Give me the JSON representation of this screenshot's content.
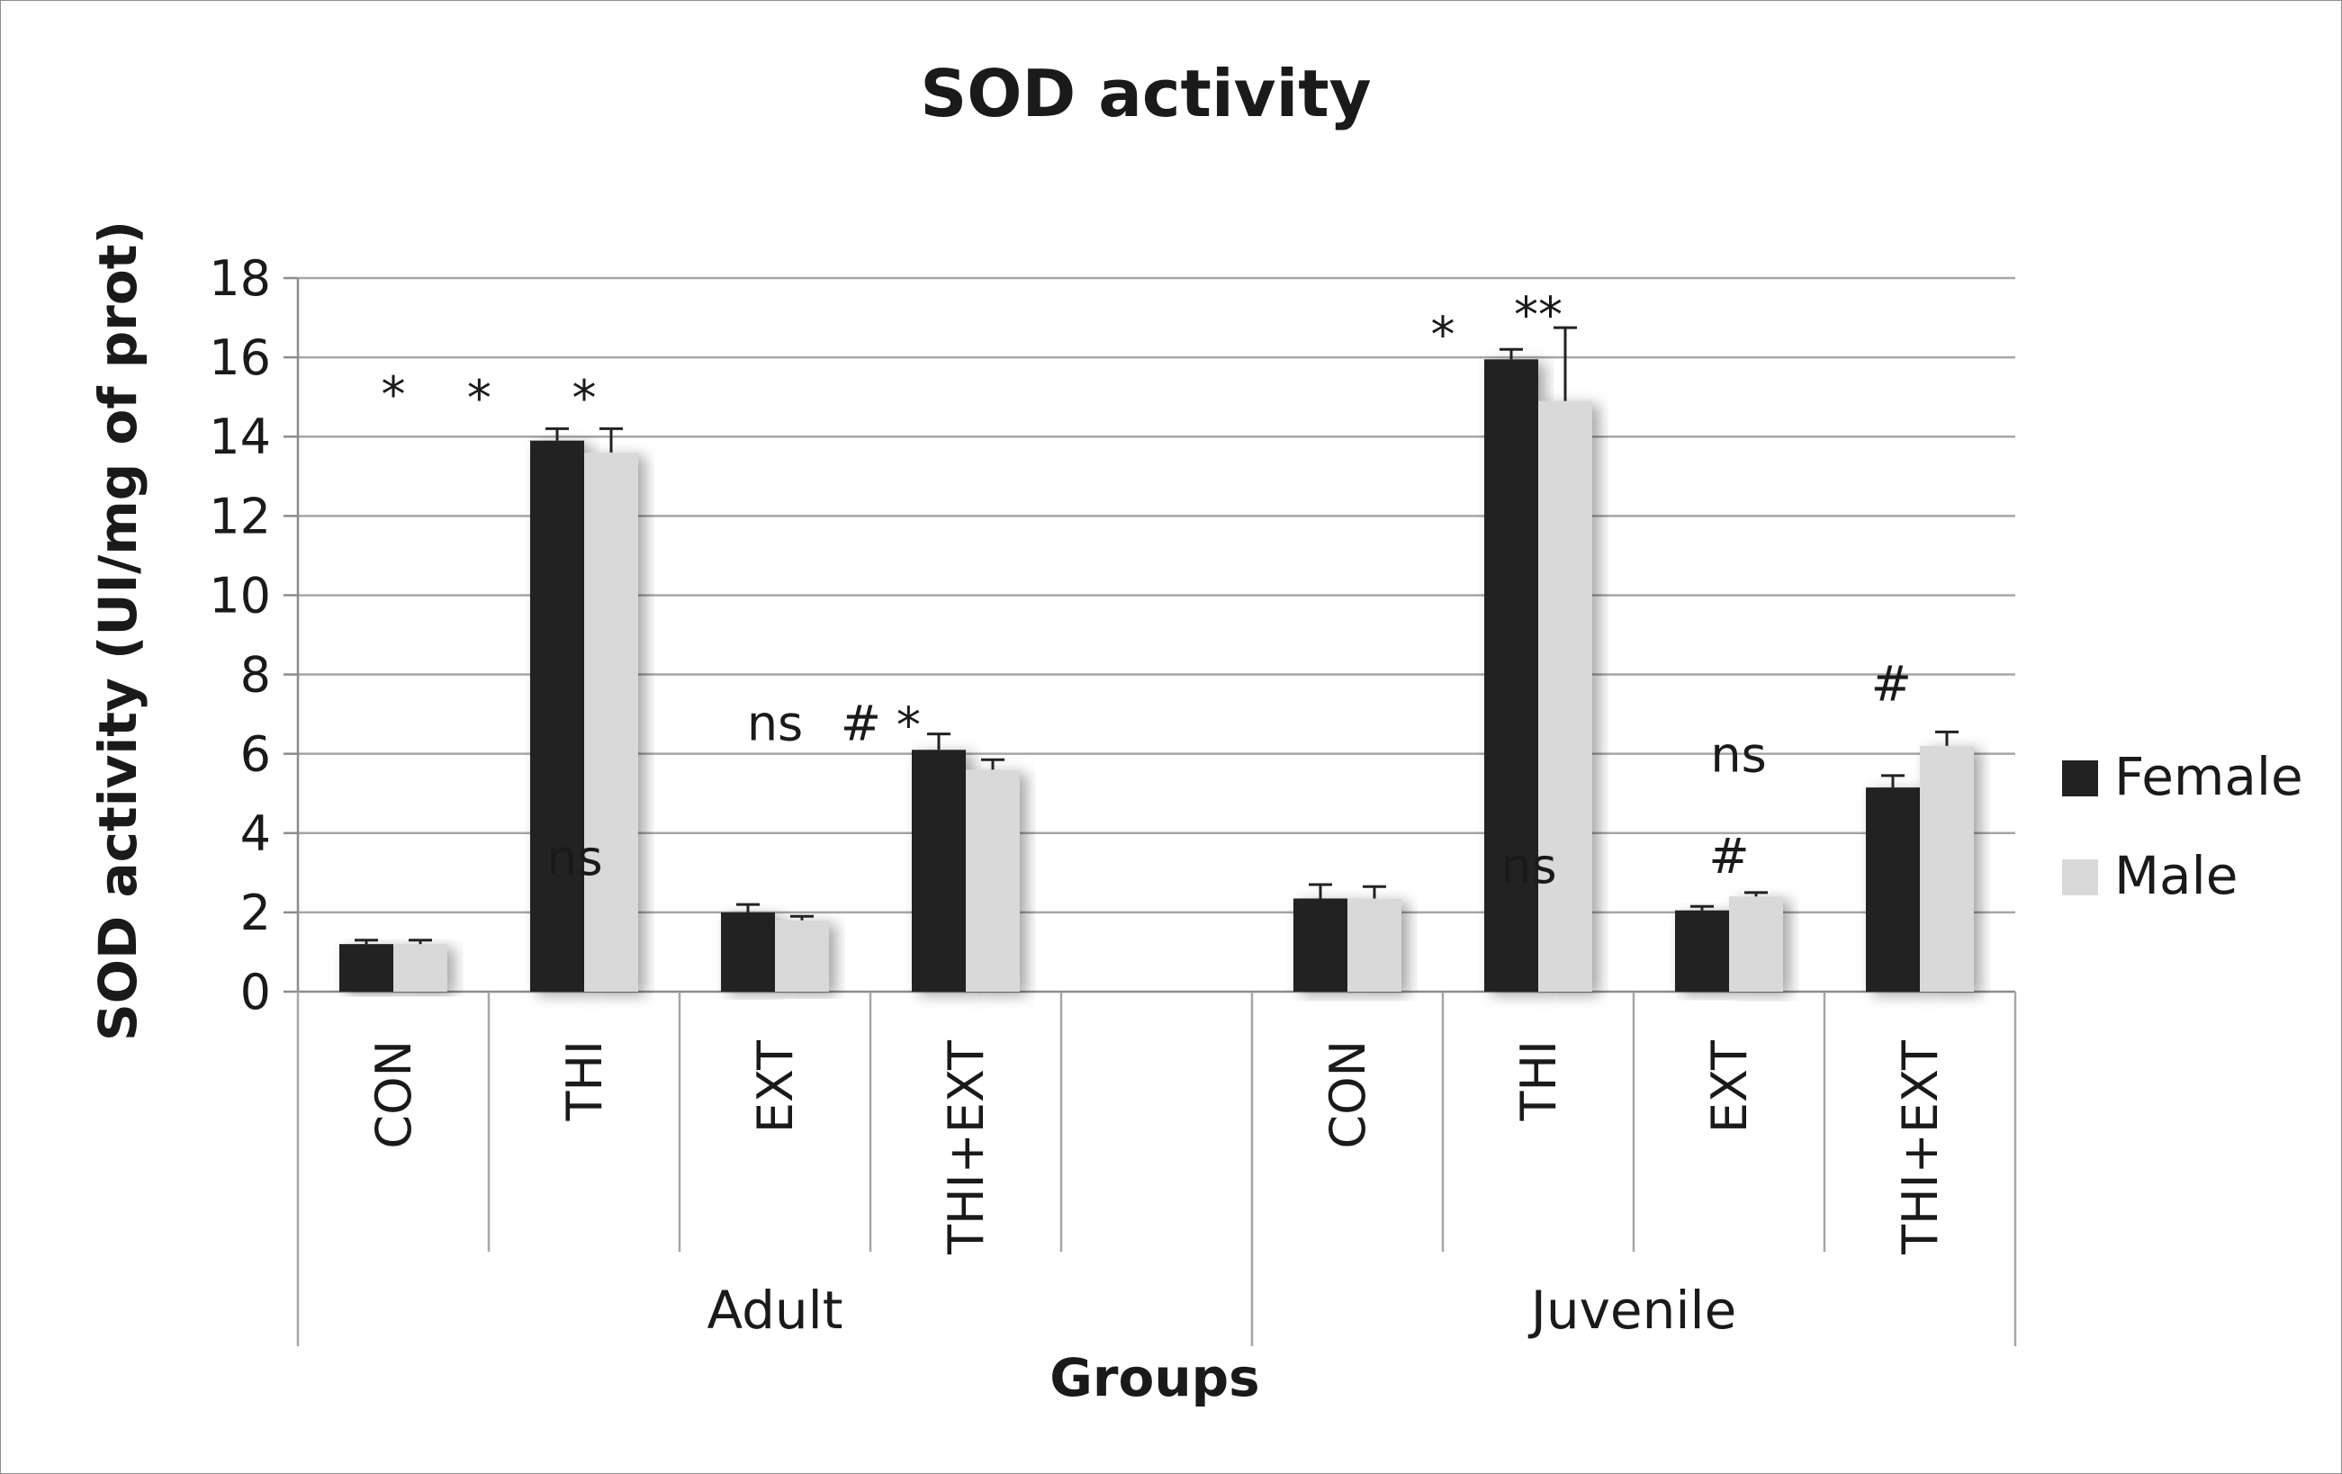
{
  "chart_data": {
    "type": "bar",
    "title": "SOD activity",
    "xlabel": "Groups",
    "ylabel": "SOD activity (UI/mg of prot)",
    "ylim": [
      0,
      18
    ],
    "yticks": [
      0,
      2,
      4,
      6,
      8,
      10,
      12,
      14,
      16,
      18
    ],
    "grid": true,
    "legend_position": "right",
    "groups": [
      {
        "name": "Adult",
        "categories": [
          "CON",
          "THI",
          "EXT",
          "THI+EXT",
          ""
        ]
      },
      {
        "name": "Juvenile",
        "categories": [
          "CON",
          "THI",
          "EXT",
          "THI+EXT"
        ]
      }
    ],
    "categories": [
      "CON",
      "THI",
      "EXT",
      "THI+EXT",
      "",
      "CON",
      "THI",
      "EXT",
      "THI+EXT"
    ],
    "series": [
      {
        "name": "Female",
        "color": "#222222",
        "values": [
          1.2,
          13.9,
          2.0,
          6.1,
          null,
          2.35,
          15.95,
          2.05,
          5.15
        ],
        "errors": [
          0.1,
          0.3,
          0.2,
          0.4,
          null,
          0.35,
          0.25,
          0.1,
          0.3
        ]
      },
      {
        "name": "Male",
        "color": "#d9d9d9",
        "values": [
          1.2,
          13.6,
          1.8,
          5.6,
          null,
          2.35,
          14.9,
          2.4,
          6.2
        ],
        "errors": [
          0.1,
          0.6,
          0.1,
          0.25,
          null,
          0.3,
          1.85,
          0.1,
          0.35
        ]
      }
    ],
    "annotations": [
      {
        "text": "*",
        "category_index": 1,
        "y": 15.1,
        "offset": -1.0
      },
      {
        "text": "*",
        "category_index": 1,
        "y": 15.0,
        "offset": -0.55
      },
      {
        "text": "*",
        "category_index": 1,
        "y": 15.0,
        "offset": 0.0
      },
      {
        "text": "ns",
        "category_index": 2,
        "y": 3.4,
        "offset": -1.05
      },
      {
        "text": "ns",
        "category_index": 3,
        "y": 6.8,
        "offset": -1.0
      },
      {
        "text": "#",
        "category_index": 3,
        "y": 6.8,
        "offset": -0.55
      },
      {
        "text": "*",
        "category_index": 3,
        "y": 6.75,
        "offset": -0.3
      },
      {
        "text": "*",
        "category_index": 6,
        "y": 16.6,
        "offset": -0.5
      },
      {
        "text": "**",
        "category_index": 6,
        "y": 17.1,
        "offset": 0.0
      },
      {
        "text": "ns",
        "category_index": 7,
        "y": 3.2,
        "offset": -1.05
      },
      {
        "text": "#",
        "category_index": 7,
        "y": 3.45,
        "offset": 0.0
      },
      {
        "text": "ns",
        "category_index": 8,
        "y": 6.0,
        "offset": -0.95
      },
      {
        "text": "#",
        "category_index": 8,
        "y": 7.8,
        "offset": -0.15
      }
    ]
  }
}
